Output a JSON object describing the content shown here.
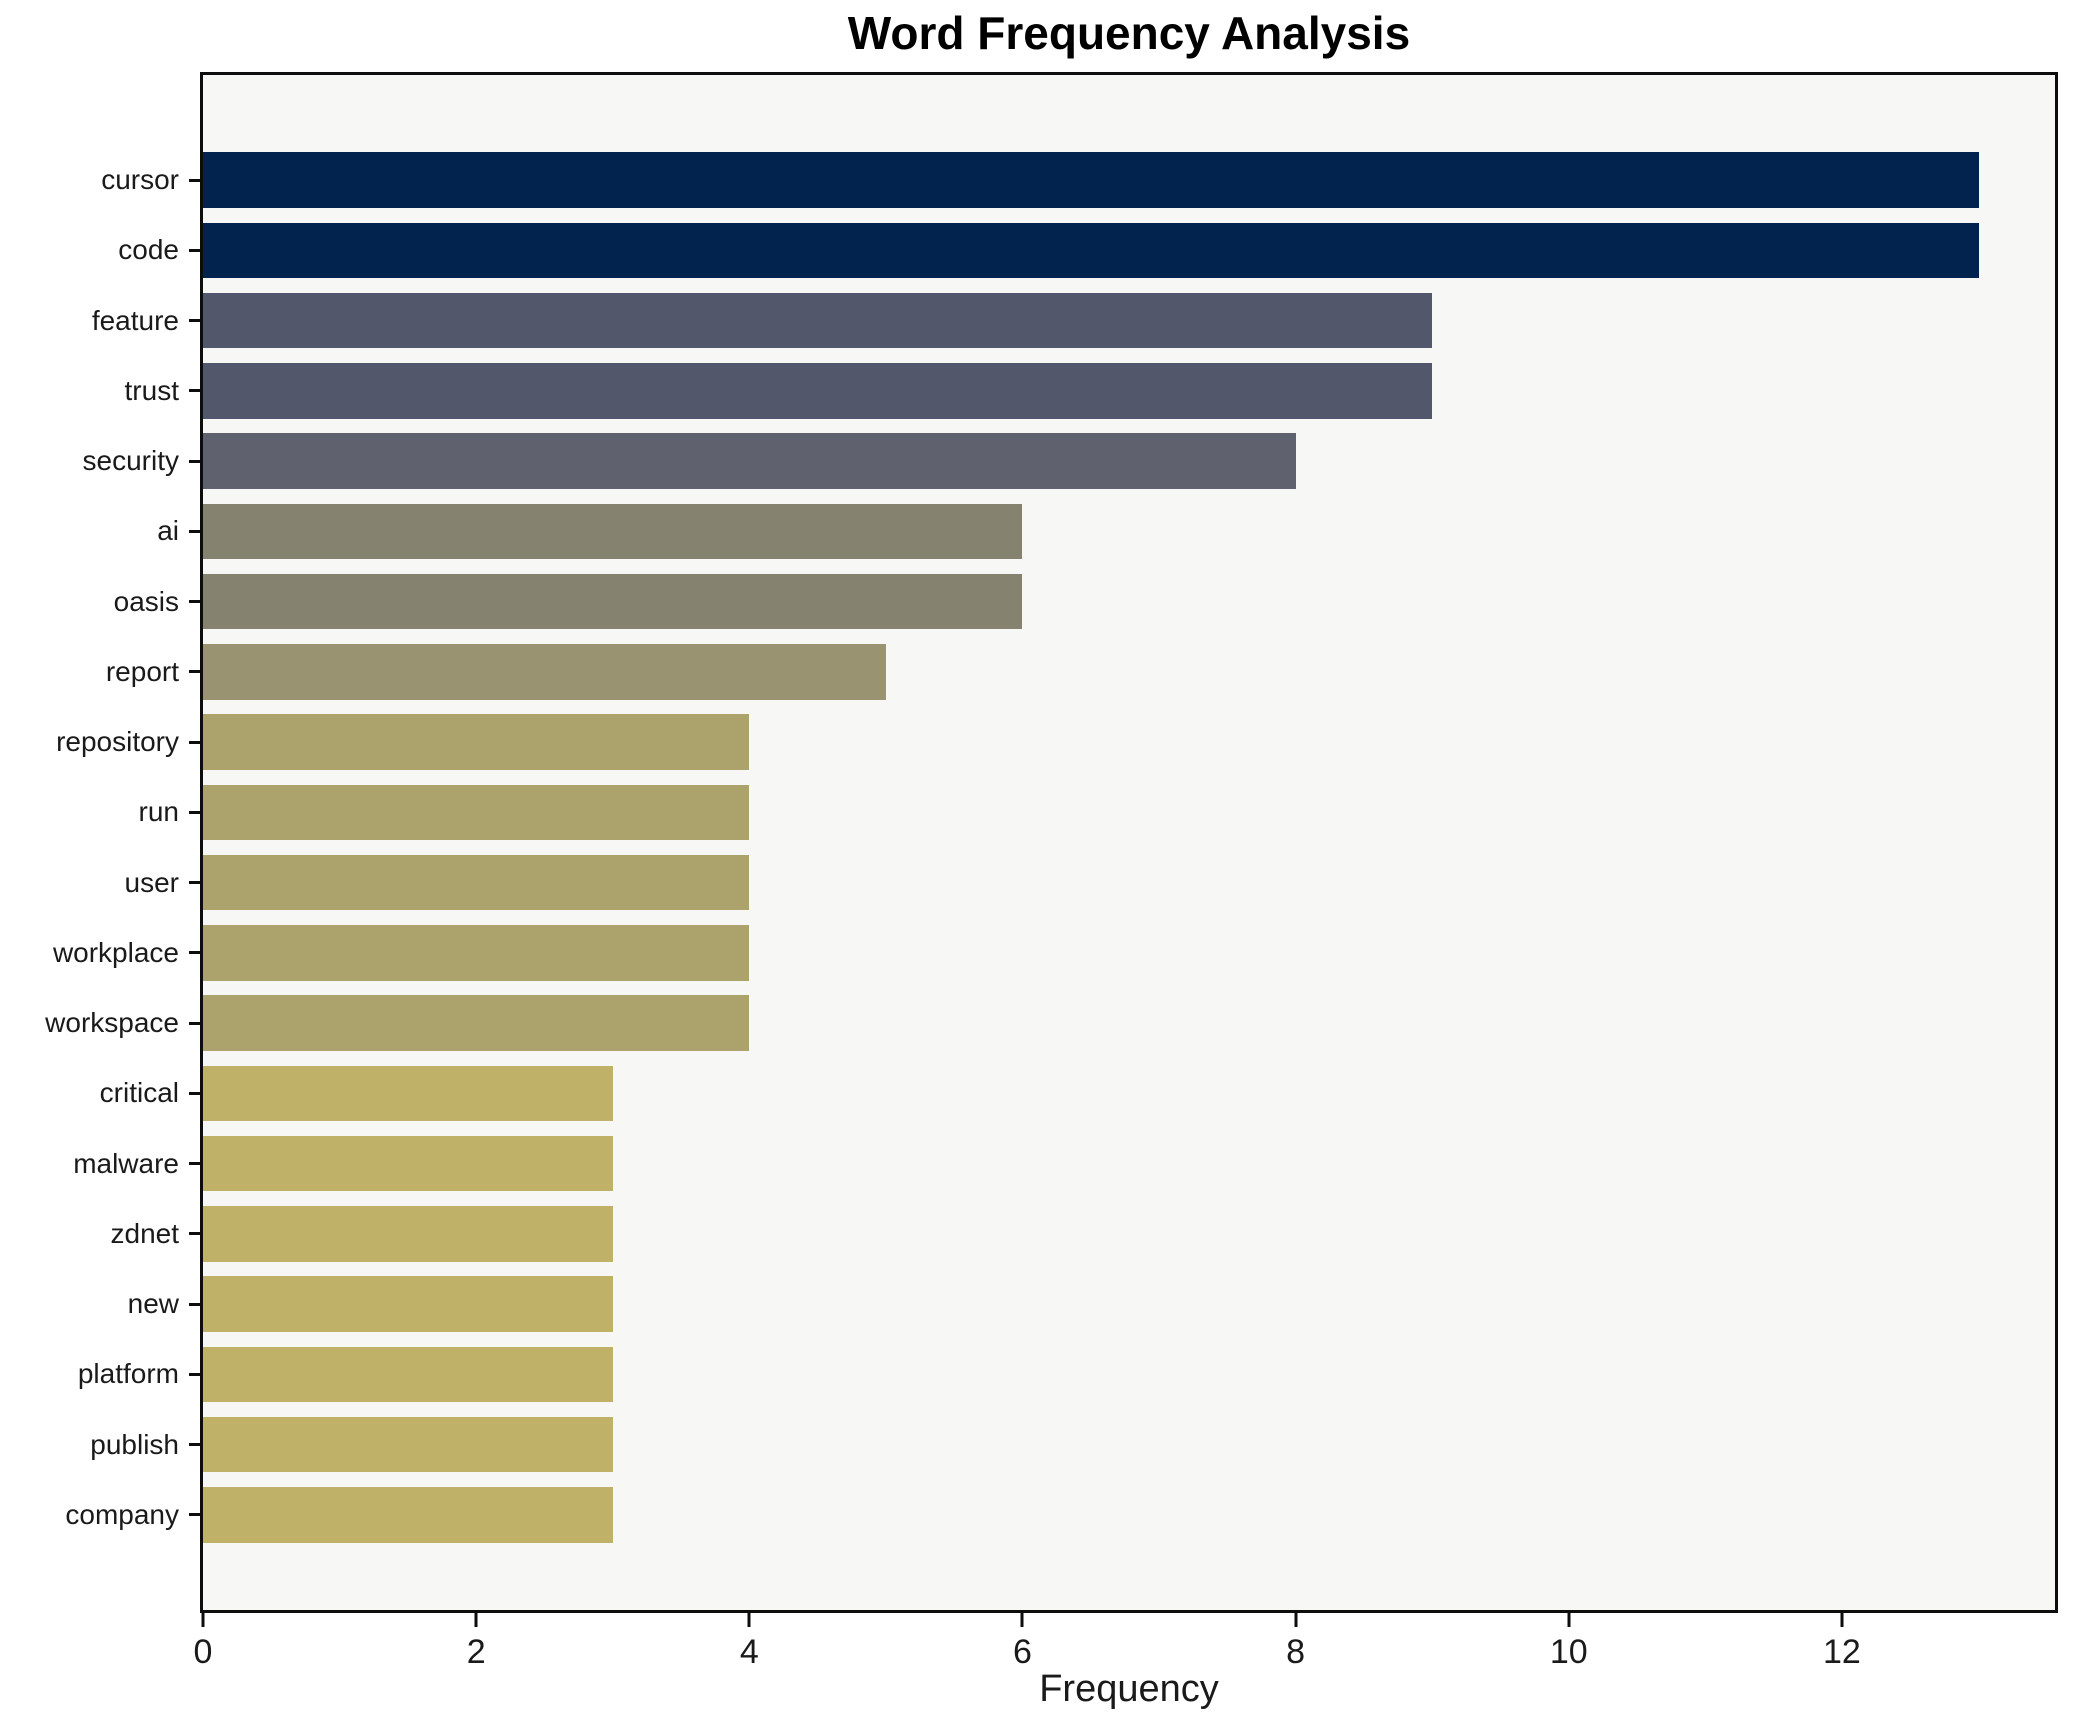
{
  "figure": {
    "background_color": "#ffffff",
    "plot_background_color": "#f7f7f6",
    "spine_color": "#0d0d0d"
  },
  "chart_data": {
    "type": "bar",
    "orientation": "horizontal",
    "title": "Word Frequency Analysis",
    "xlabel": "Frequency",
    "ylabel": "",
    "grid": false,
    "legend": null,
    "categories": [
      "cursor",
      "code",
      "feature",
      "trust",
      "security",
      "ai",
      "oasis",
      "report",
      "repository",
      "run",
      "user",
      "workplace",
      "workspace",
      "critical",
      "malware",
      "zdnet",
      "new",
      "platform",
      "publish",
      "company"
    ],
    "values": [
      13,
      13,
      9,
      9,
      8,
      6,
      6,
      5,
      4,
      4,
      4,
      4,
      4,
      3,
      3,
      3,
      3,
      3,
      3,
      3
    ],
    "bar_colors": [
      "#02234e",
      "#02234e",
      "#53576c",
      "#53576c",
      "#5f626e",
      "#868270",
      "#868270",
      "#999372",
      "#aba26c",
      "#aba26c",
      "#aba26c",
      "#aba26c",
      "#aba26c",
      "#c0b168",
      "#c0b168",
      "#c0b168",
      "#c0b168",
      "#c0b168",
      "#c0b168",
      "#c0b168"
    ],
    "xlim": [
      0,
      13.56
    ],
    "x_ticks": [
      0,
      2,
      4,
      6,
      8,
      10,
      12
    ]
  }
}
